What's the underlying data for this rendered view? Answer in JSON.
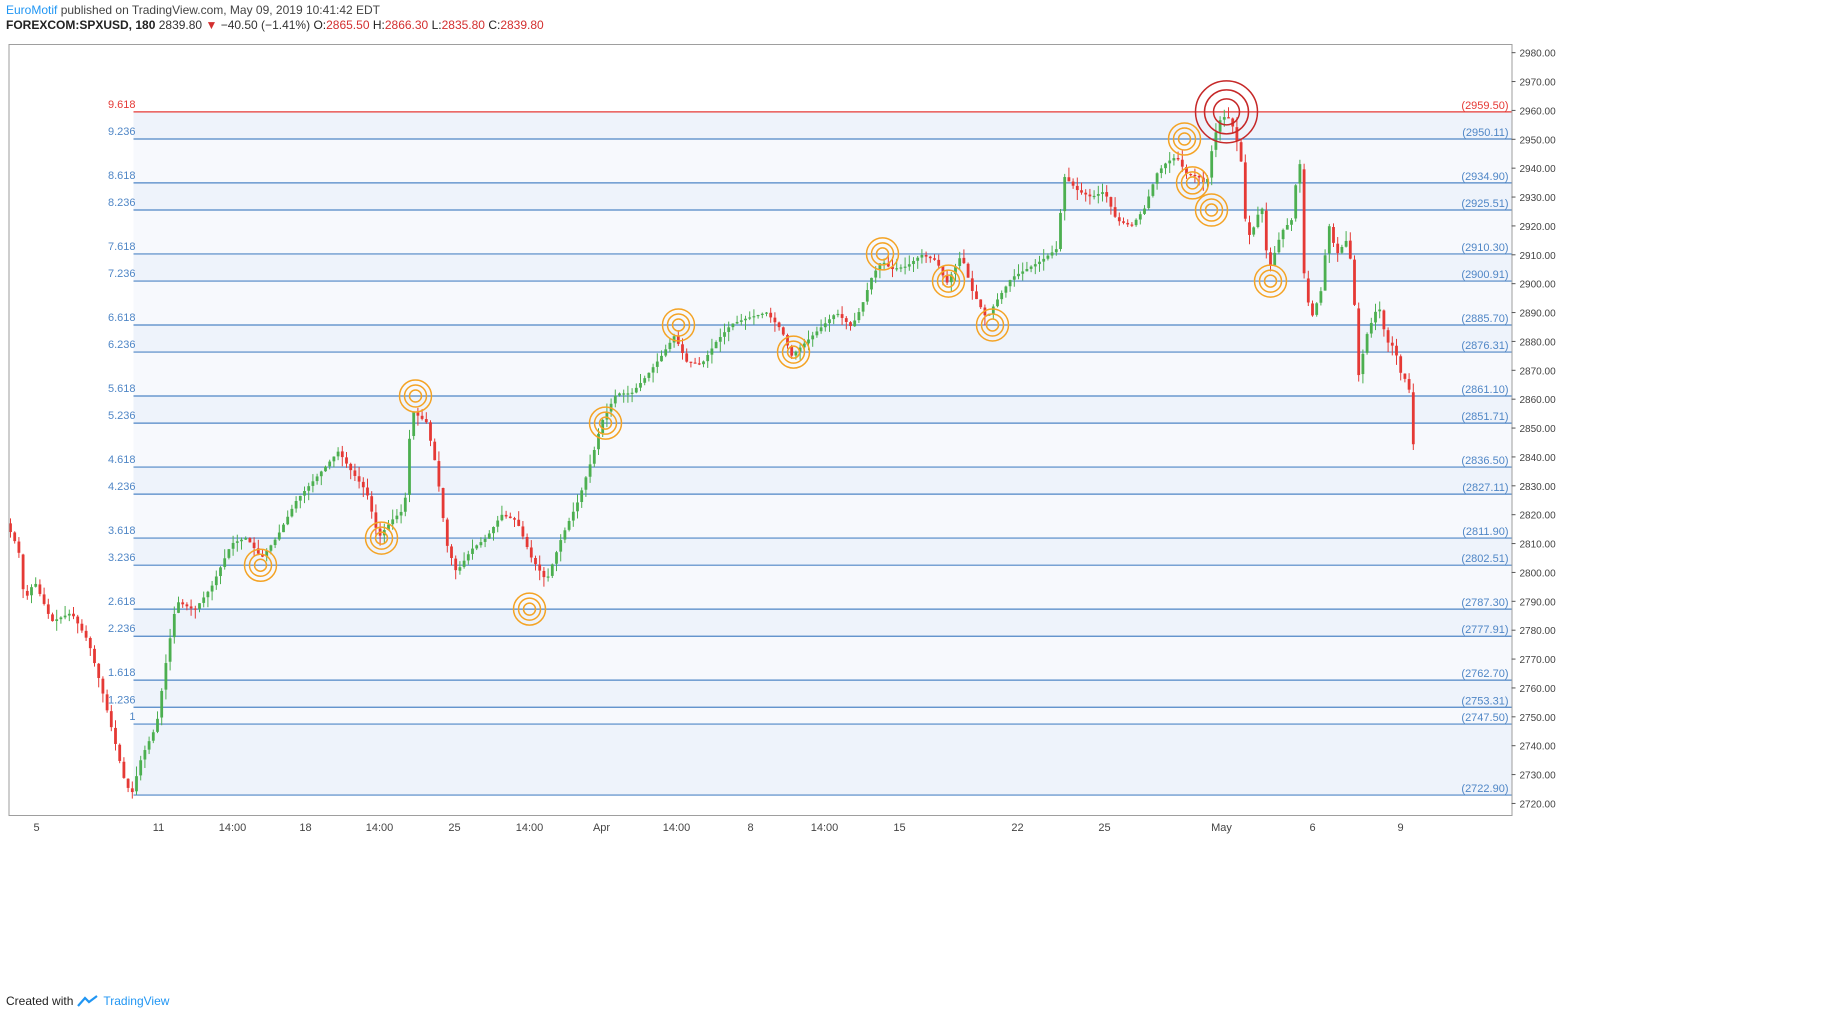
{
  "header": {
    "brand": "EuroMotif",
    "published_text": " published on TradingView.com, May 09, 2019 10:41:42 EDT",
    "symbol": "FOREXCOM:SPXUSD, 180",
    "last": "2839.80",
    "change": "−40.50 (−1.41%)",
    "o_label": "O:",
    "o_value": "2865.50",
    "h_label": "H:",
    "h_value": "2866.30",
    "l_label": "L:",
    "l_value": "2835.80",
    "c_label": "C:",
    "c_value": "2839.80"
  },
  "footer": {
    "created_with": "Created with",
    "brand": "TradingView"
  },
  "colors": {
    "up": "#4caf50",
    "down": "#e53935",
    "fib_line": "#4f86c6",
    "top_line": "#e53935",
    "band": "#eef3fb",
    "circle_orange": "#f4a324",
    "circle_red": "#c62828"
  },
  "chart_data": {
    "type": "candlestick",
    "ylim": [
      2716,
      2983
    ],
    "y_ticks": [
      2720,
      2730,
      2740,
      2750,
      2760,
      2770,
      2780,
      2790,
      2800,
      2810,
      2820,
      2830,
      2840,
      2850,
      2860,
      2870,
      2880,
      2890,
      2900,
      2910,
      2920,
      2930,
      2940,
      2950,
      2960,
      2970,
      2980
    ],
    "x_ticks": [
      "5",
      "11",
      "14:00",
      "18",
      "14:00",
      "25",
      "14:00",
      "Apr",
      "14:00",
      "8",
      "14:00",
      "15",
      "22",
      "25",
      "May",
      "6",
      "9"
    ],
    "fib_levels": [
      {
        "ratio": "9.618",
        "price": 2959.5,
        "label": "(2959.50)",
        "top": true
      },
      {
        "ratio": "9.236",
        "price": 2950.11,
        "label": "(2950.11)"
      },
      {
        "ratio": "8.618",
        "price": 2934.9,
        "label": "(2934.90)"
      },
      {
        "ratio": "8.236",
        "price": 2925.51,
        "label": "(2925.51)"
      },
      {
        "ratio": "7.618",
        "price": 2910.3,
        "label": "(2910.30)"
      },
      {
        "ratio": "7.236",
        "price": 2900.91,
        "label": "(2900.91)"
      },
      {
        "ratio": "6.618",
        "price": 2885.7,
        "label": "(2885.70)"
      },
      {
        "ratio": "6.236",
        "price": 2876.31,
        "label": "(2876.31)"
      },
      {
        "ratio": "5.618",
        "price": 2861.1,
        "label": "(2861.10)"
      },
      {
        "ratio": "5.236",
        "price": 2851.71,
        "label": "(2851.71)"
      },
      {
        "ratio": "4.618",
        "price": 2836.5,
        "label": "(2836.50)"
      },
      {
        "ratio": "4.236",
        "price": 2827.11,
        "label": "(2827.11)"
      },
      {
        "ratio": "3.618",
        "price": 2811.9,
        "label": "(2811.90)"
      },
      {
        "ratio": "3.236",
        "price": 2802.51,
        "label": "(2802.51)"
      },
      {
        "ratio": "2.618",
        "price": 2787.3,
        "label": "(2787.30)"
      },
      {
        "ratio": "2.236",
        "price": 2777.91,
        "label": "(2777.91)"
      },
      {
        "ratio": "1.618",
        "price": 2762.7,
        "label": "(2762.70)"
      },
      {
        "ratio": "1.236",
        "price": 2753.31,
        "label": "(2753.31)"
      },
      {
        "ratio": "1",
        "price": 2747.5,
        "label": "(2747.50)"
      },
      {
        "ratio": "",
        "price": 2722.9,
        "label": "(2722.90)"
      }
    ],
    "price_path": [
      [
        0,
        2817
      ],
      [
        12,
        2808
      ],
      [
        18,
        2790
      ],
      [
        28,
        2797
      ],
      [
        45,
        2783
      ],
      [
        65,
        2786
      ],
      [
        82,
        2776
      ],
      [
        95,
        2760
      ],
      [
        108,
        2742
      ],
      [
        118,
        2728
      ],
      [
        125,
        2722.9
      ],
      [
        135,
        2736
      ],
      [
        150,
        2747
      ],
      [
        160,
        2770
      ],
      [
        170,
        2790
      ],
      [
        188,
        2787
      ],
      [
        205,
        2795
      ],
      [
        225,
        2810
      ],
      [
        240,
        2812
      ],
      [
        255,
        2805
      ],
      [
        270,
        2812
      ],
      [
        290,
        2825
      ],
      [
        310,
        2833
      ],
      [
        332,
        2842
      ],
      [
        345,
        2835
      ],
      [
        360,
        2828
      ],
      [
        372,
        2812
      ],
      [
        385,
        2818
      ],
      [
        398,
        2822
      ],
      [
        405,
        2856
      ],
      [
        420,
        2852
      ],
      [
        430,
        2836
      ],
      [
        440,
        2810
      ],
      [
        450,
        2800
      ],
      [
        465,
        2808
      ],
      [
        480,
        2812
      ],
      [
        495,
        2820
      ],
      [
        510,
        2818
      ],
      [
        525,
        2805
      ],
      [
        540,
        2797
      ],
      [
        555,
        2812
      ],
      [
        572,
        2825
      ],
      [
        586,
        2840
      ],
      [
        595,
        2852
      ],
      [
        610,
        2862
      ],
      [
        625,
        2862
      ],
      [
        640,
        2868
      ],
      [
        655,
        2875
      ],
      [
        668,
        2882
      ],
      [
        680,
        2873
      ],
      [
        695,
        2872
      ],
      [
        710,
        2880
      ],
      [
        725,
        2886
      ],
      [
        740,
        2888
      ],
      [
        760,
        2890
      ],
      [
        775,
        2884
      ],
      [
        785,
        2875
      ],
      [
        800,
        2880
      ],
      [
        815,
        2885
      ],
      [
        830,
        2890
      ],
      [
        845,
        2885
      ],
      [
        855,
        2892
      ],
      [
        865,
        2902
      ],
      [
        875,
        2908
      ],
      [
        885,
        2905
      ],
      [
        900,
        2906
      ],
      [
        915,
        2910
      ],
      [
        930,
        2908
      ],
      [
        940,
        2900
      ],
      [
        955,
        2910
      ],
      [
        965,
        2898
      ],
      [
        980,
        2888
      ],
      [
        990,
        2894
      ],
      [
        1005,
        2902
      ],
      [
        1020,
        2905
      ],
      [
        1035,
        2908
      ],
      [
        1050,
        2912
      ],
      [
        1058,
        2937
      ],
      [
        1072,
        2932
      ],
      [
        1085,
        2930
      ],
      [
        1098,
        2932
      ],
      [
        1110,
        2922
      ],
      [
        1125,
        2920
      ],
      [
        1138,
        2926
      ],
      [
        1150,
        2938
      ],
      [
        1160,
        2942
      ],
      [
        1170,
        2944
      ],
      [
        1180,
        2938
      ],
      [
        1192,
        2937
      ],
      [
        1200,
        2934
      ],
      [
        1207,
        2950
      ],
      [
        1215,
        2958
      ],
      [
        1224,
        2957
      ],
      [
        1230,
        2950
      ],
      [
        1236,
        2940
      ],
      [
        1240,
        2915
      ],
      [
        1248,
        2920
      ],
      [
        1255,
        2928
      ],
      [
        1262,
        2904
      ],
      [
        1275,
        2918
      ],
      [
        1285,
        2922
      ],
      [
        1293,
        2945
      ],
      [
        1298,
        2900
      ],
      [
        1305,
        2888
      ],
      [
        1315,
        2898
      ],
      [
        1322,
        2921
      ],
      [
        1330,
        2910
      ],
      [
        1340,
        2915
      ],
      [
        1346,
        2905
      ],
      [
        1352,
        2868
      ],
      [
        1360,
        2882
      ],
      [
        1372,
        2893
      ],
      [
        1380,
        2880
      ],
      [
        1388,
        2878
      ],
      [
        1395,
        2868
      ],
      [
        1402,
        2866
      ],
      [
        1408,
        2839
      ]
    ],
    "circles": [
      {
        "x": 252,
        "price": 2802.5,
        "color": "orange"
      },
      {
        "x": 373,
        "price": 2811.9,
        "color": "orange"
      },
      {
        "x": 407,
        "price": 2861.1,
        "color": "orange"
      },
      {
        "x": 521,
        "price": 2787.3,
        "color": "orange"
      },
      {
        "x": 597,
        "price": 2851.7,
        "color": "orange"
      },
      {
        "x": 670,
        "price": 2885.7,
        "color": "orange"
      },
      {
        "x": 785,
        "price": 2876.3,
        "color": "orange"
      },
      {
        "x": 874,
        "price": 2910.3,
        "color": "orange"
      },
      {
        "x": 940,
        "price": 2900.9,
        "color": "orange"
      },
      {
        "x": 984,
        "price": 2885.7,
        "color": "orange"
      },
      {
        "x": 1176,
        "price": 2950.1,
        "color": "orange"
      },
      {
        "x": 1184,
        "price": 2934.9,
        "color": "orange"
      },
      {
        "x": 1203,
        "price": 2925.5,
        "color": "orange"
      },
      {
        "x": 1262,
        "price": 2900.9,
        "color": "orange"
      },
      {
        "x": 1218,
        "price": 2959.5,
        "color": "red"
      }
    ]
  }
}
